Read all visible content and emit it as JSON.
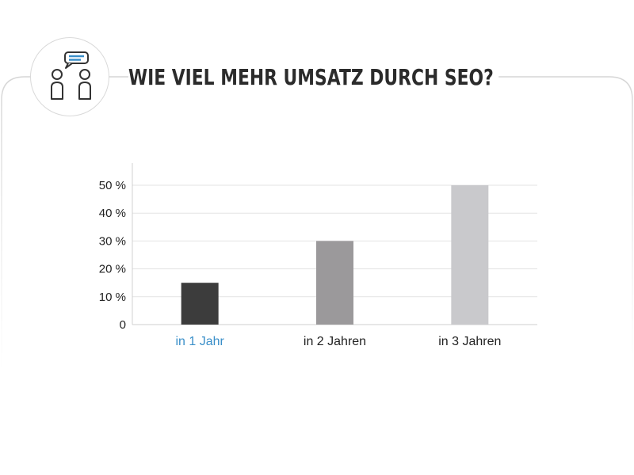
{
  "header": {
    "title": "WIE VIEL MEHR UMSATZ DURCH SEO?",
    "icon": "people-chat-icon"
  },
  "colors": {
    "accent": "#3a8fc9",
    "bar_dark": "#3c3c3c",
    "bar_mid": "#9b999b",
    "bar_light": "#c9c9cc"
  },
  "chart_data": {
    "type": "bar",
    "categories": [
      "in 1 Jahr",
      "in 2 Jahren",
      "in 3 Jahren"
    ],
    "values": [
      15,
      30,
      50
    ],
    "ylim": [
      0,
      50
    ],
    "yticks": [
      0,
      10,
      20,
      30,
      40,
      50
    ],
    "ytick_labels": [
      "0",
      "10 %",
      "20 %",
      "30 %",
      "40 %",
      "50 %"
    ],
    "grid": true,
    "highlight_category": 0
  }
}
